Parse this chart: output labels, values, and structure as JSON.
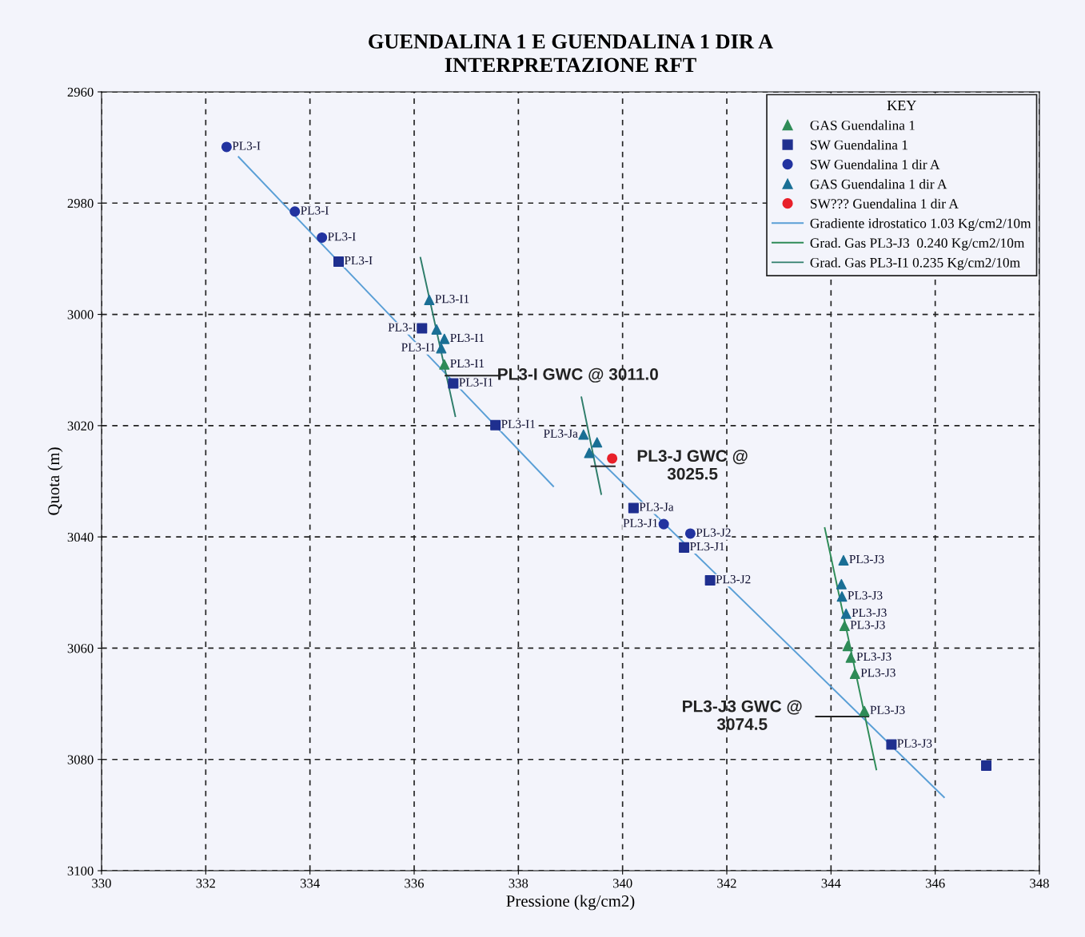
{
  "chart_data": {
    "type": "scatter",
    "title": "GUENDALINA 1 E GUENDALINA 1 DIR A\nINTERPRETAZIONE RFT",
    "xlabel": "Pressione (kg/cm2)",
    "ylabel": "Quota (m)",
    "xlim": [
      330,
      348
    ],
    "xticks": [
      330,
      332,
      334,
      336,
      338,
      340,
      342,
      344,
      346,
      348
    ],
    "ylim": [
      3100,
      2960
    ],
    "yticks": [
      2960,
      2980,
      3000,
      3020,
      3040,
      3060,
      3080,
      3100
    ],
    "grid": true,
    "legend": "top right",
    "legend_title": "KEY",
    "series": [
      {
        "name": "GAS Guendalina 1",
        "marker": "triangle",
        "color": "#2e8b57",
        "x": [
          336.58,
          344.26,
          344.32,
          344.38,
          344.46,
          344.64
        ],
        "values": [
          3009.0,
          3056.0,
          3059.6,
          3061.7,
          3064.6,
          3071.3
        ],
        "value_labels": [
          "PL3-I1",
          "PL3-J3",
          null,
          "PL3-J3",
          "PL3-J3",
          "PL3-J3"
        ]
      },
      {
        "name": "SW Guendalina 1",
        "marker": "square",
        "color": "#1f2f8f",
        "x": [
          334.55,
          336.15,
          336.75,
          337.56,
          340.21,
          341.18,
          341.68,
          345.16,
          346.98
        ],
        "values": [
          2990.5,
          3002.5,
          3012.4,
          3019.9,
          3034.8,
          3041.9,
          3047.8,
          3077.3,
          3081.1
        ],
        "value_labels": [
          "PL3-I",
          "PL3-I",
          "PL3-I1",
          "PL3-I1",
          "PL3-Ja",
          "PL3-J1",
          "PL3-J2",
          "PL3-J3",
          null
        ]
      },
      {
        "name": "SW Guendalina 1 dir A",
        "marker": "circle",
        "color": "#2233a0",
        "x": [
          332.4,
          333.71,
          334.23,
          340.79,
          341.3
        ],
        "values": [
          2969.9,
          2981.5,
          2986.2,
          3037.7,
          3039.4
        ],
        "value_labels": [
          "PL3-I",
          "PL3-I",
          "PL3-I",
          "PL3-J1",
          "PL3-J2"
        ]
      },
      {
        "name": "GAS Guendalina 1 dir A",
        "marker": "triangle",
        "color": "#1a6f95",
        "x": [
          336.29,
          336.43,
          336.58,
          336.52,
          339.25,
          339.51,
          339.36,
          344.24,
          344.2,
          344.21,
          344.29
        ],
        "values": [
          2997.4,
          3002.7,
          3004.4,
          3006.1,
          3021.6,
          3023.0,
          3024.9,
          3044.2,
          3048.5,
          3050.7,
          3053.8
        ],
        "value_labels": [
          "PL3-I1",
          null,
          "PL3-I1",
          "PL3-I1",
          "PL3-Ja",
          null,
          null,
          "PL3-J3",
          null,
          "PL3-J3",
          "PL3-J3"
        ]
      },
      {
        "name": "SW??? Guendalina 1 dir A",
        "marker": "circle",
        "color": "#e8202a",
        "x": [
          339.8
        ],
        "values": [
          3025.9
        ]
      },
      {
        "name": "Gradiente idrostatico 1.03 Kg/cm2/10m",
        "type": "line",
        "color": "#5a9fd6",
        "x": [
          332.63,
          338.67,
          null,
          339.37,
          346.17
        ],
        "values": [
          2971.7,
          3030.9,
          null,
          3024.5,
          3086.8
        ]
      },
      {
        "name": "Grad. Gas PL3-J3  0.240 Kg/cm2/10m",
        "type": "line",
        "color": "#2e8b57",
        "x": [
          343.88,
          344.87
        ],
        "values": [
          3038.4,
          3081.8
        ]
      },
      {
        "name": "Grad. Gas PL3-I1 0.235 Kg/cm2/10m",
        "type": "line",
        "color": "#2e7d6a",
        "x": [
          336.12,
          336.79
        ],
        "values": [
          2989.8,
          3018.3
        ]
      },
      {
        "type": "line",
        "color": "#2e7d6a",
        "x": [
          339.21,
          339.59
        ],
        "values": [
          3014.9,
          3032.3
        ]
      },
      {
        "type": "line",
        "color": "#222222",
        "x": [
          336.6,
          337.65
        ],
        "values": [
          3011.0,
          3011.0
        ]
      },
      {
        "type": "line",
        "color": "#222222",
        "x": [
          339.4,
          339.85
        ],
        "values": [
          3027.3,
          3027.3
        ]
      },
      {
        "type": "line",
        "color": "#222222",
        "x": [
          343.71,
          344.72
        ],
        "values": [
          3072.3,
          3072.3
        ]
      }
    ],
    "annotations": [
      {
        "text": "PL3-I GWC @ 3011.0",
        "x": 337.65,
        "y": 3011.0
      },
      {
        "text": "PL3-J GWC @\n3025.5",
        "x": 339.85,
        "y": 3027.3
      },
      {
        "text": "PL3-J3 GWC @\n3074.5",
        "x": 343.71,
        "y": 3072.3
      }
    ]
  }
}
